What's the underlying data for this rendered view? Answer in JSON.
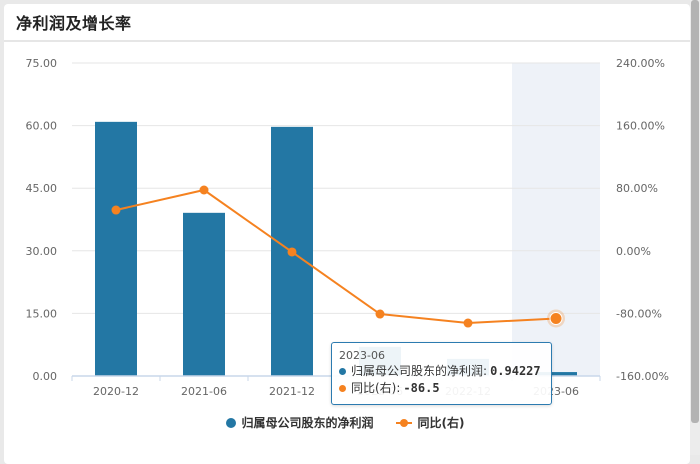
{
  "card": {
    "title": "净利润及增长率"
  },
  "tooltip": {
    "date": "2023-06",
    "rows": [
      {
        "label": "归属母公司股东的净利润",
        "value": "0.94227",
        "color": "#2377a4"
      },
      {
        "label": "同比(右)",
        "value": "-86.5",
        "color": "#f58220"
      }
    ]
  },
  "legend": [
    {
      "label": "归属母公司股东的净利润",
      "color": "#2377a4",
      "type": "bar"
    },
    {
      "label": "同比(右)",
      "color": "#f58220",
      "type": "line"
    }
  ],
  "colors": {
    "bar": "#2377a4",
    "line": "#f58220",
    "highlight": "#eef2f8",
    "grid": "#e6e6e6",
    "axis_text": "#666666"
  },
  "chart_data": {
    "type": "bar+line",
    "title": "净利润及增长率",
    "categories": [
      "2020-12",
      "2021-06",
      "2021-12",
      "2022-06",
      "2022-12",
      "2023-06"
    ],
    "series": [
      {
        "name": "归属母公司股东的净利润",
        "type": "bar",
        "axis": "left",
        "values": [
          60.9,
          39.1,
          59.7,
          7.0,
          4.1,
          0.94227
        ]
      },
      {
        "name": "同比(右)",
        "type": "line",
        "axis": "right",
        "values": [
          52.1,
          77.7,
          -1.5,
          -80.8,
          -92.3,
          -86.5
        ]
      }
    ],
    "y_left": {
      "ticks": [
        "0.00",
        "15.00",
        "30.00",
        "45.00",
        "60.00",
        "75.00"
      ],
      "range": [
        0,
        75
      ]
    },
    "y_right": {
      "ticks": [
        "-160.00%",
        "-80.00%",
        "0.00%",
        "80.00%",
        "160.00%",
        "240.00%"
      ],
      "range": [
        -160,
        240
      ]
    },
    "highlighted_category": "2023-06",
    "grid": true,
    "legend_position": "bottom"
  }
}
